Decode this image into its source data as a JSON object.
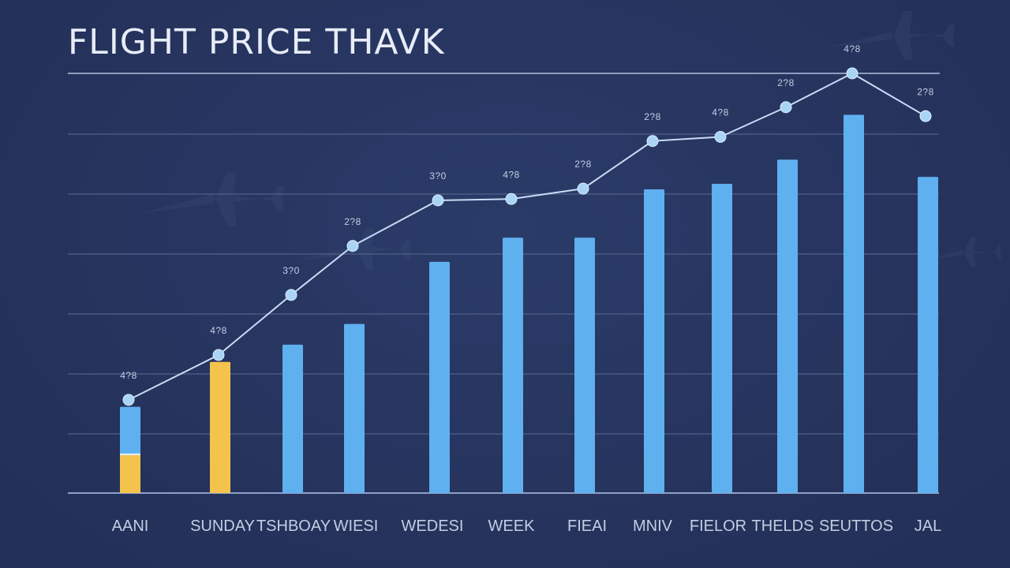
{
  "title": "FLIGHT PRICE THAVK",
  "colors": {
    "background": "#26345e",
    "bar": "#5fb0ef",
    "highlight_bar": "#f3c34c",
    "line": "#c9dcf5",
    "point": "#a9d4f5",
    "grid": "#56668f",
    "text": "#e7ecf7",
    "label": "#c4cde3"
  },
  "chart_data": {
    "type": "bar",
    "title": "FLIGHT PRICE THAVK",
    "categories": [
      "AANI",
      "SUNDAY",
      "TSHBOAY",
      "WIESI",
      "WEDESI",
      "WEEK",
      "FIEAI",
      "MNIV",
      "FIELOR",
      "THELDS",
      "SEUTTOS",
      "JAL"
    ],
    "ylim": [
      0,
      600
    ],
    "grid": true,
    "series": [
      {
        "type": "bar",
        "values": [
          125,
          190,
          215,
          245,
          335,
          370,
          370,
          440,
          448,
          483,
          548,
          458
        ],
        "highlight_values": [
          55,
          null,
          null,
          null,
          null,
          null,
          null,
          null,
          null,
          null,
          null,
          null
        ],
        "highlight_index": 1
      },
      {
        "type": "line",
        "values": [
          135,
          200,
          287,
          358,
          424,
          426,
          441,
          510,
          516,
          559,
          608,
          546
        ],
        "labels": [
          "4?8",
          "4?8",
          "3?0",
          "2?8",
          "3?0",
          "4?8",
          "2?8",
          "2?8",
          "4?8",
          "2?8",
          "4?8",
          "2?8"
        ]
      }
    ]
  }
}
